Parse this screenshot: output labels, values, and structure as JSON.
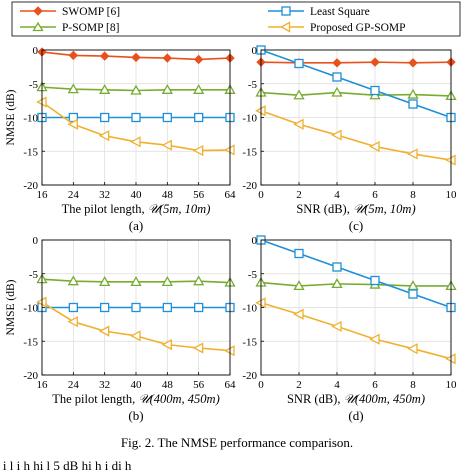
{
  "legend": {
    "entries": [
      {
        "name": "SWOMP [6]",
        "color": "#e8501c",
        "marker": "diamond"
      },
      {
        "name": "P-SOMP [8]",
        "color": "#77ac30",
        "marker": "triangle"
      },
      {
        "name": "Least Square",
        "color": "#1e90d8",
        "marker": "square"
      },
      {
        "name": "Proposed GP-SOMP",
        "color": "#f0b030",
        "marker": "left-triangle"
      }
    ]
  },
  "figure": {
    "caption": "Fig. 2.   The NMSE performance comparison.",
    "bottom_text": "l i    l    i h         hi           l    5 dB   hi h i   di     h"
  },
  "chart_data": [
    {
      "type": "line",
      "panel_label": "(a)",
      "xlabel": "The pilot length, 𝒰(5m, 10m)",
      "xlabel_parts": {
        "prefix": "The pilot length, ",
        "script": "𝒰",
        "args": "(5m, 10m)"
      },
      "ylabel": "NMSE (dB)",
      "x": [
        16,
        24,
        32,
        40,
        48,
        56,
        64
      ],
      "xticks": [
        16,
        24,
        32,
        40,
        48,
        56,
        64
      ],
      "yticks": [
        0,
        -5,
        -10,
        -15,
        -20
      ],
      "xlim": [
        16,
        64
      ],
      "ylim": [
        -20,
        0
      ],
      "grid": true,
      "series": [
        {
          "name": "SWOMP [6]",
          "values": [
            -0.3,
            -0.8,
            -0.9,
            -1.1,
            -1.2,
            -1.4,
            -1.2
          ]
        },
        {
          "name": "P-SOMP [8]",
          "values": [
            -5.5,
            -5.8,
            -5.9,
            -6.0,
            -5.9,
            -5.9,
            -5.9
          ]
        },
        {
          "name": "Least Square",
          "values": [
            -10,
            -10,
            -10,
            -10,
            -10,
            -10,
            -10
          ]
        },
        {
          "name": "Proposed GP-SOMP",
          "values": [
            -7.7,
            -11.0,
            -12.7,
            -13.6,
            -14.1,
            -14.9,
            -14.8
          ]
        }
      ]
    },
    {
      "type": "line",
      "panel_label": "(c)",
      "xlabel": "SNR (dB), 𝒰(5m, 10m)",
      "xlabel_parts": {
        "prefix": "SNR (dB), ",
        "script": "𝒰",
        "args": "(5m, 10m)"
      },
      "ylabel": "",
      "x": [
        0,
        2,
        4,
        6,
        8,
        10
      ],
      "xticks": [
        0,
        2,
        4,
        6,
        8,
        10
      ],
      "yticks": [
        0,
        -5,
        -10,
        -15,
        -20
      ],
      "xlim": [
        0,
        10
      ],
      "ylim": [
        -20,
        0
      ],
      "grid": true,
      "series": [
        {
          "name": "SWOMP [6]",
          "values": [
            -1.8,
            -1.9,
            -1.9,
            -1.8,
            -1.9,
            -1.8
          ]
        },
        {
          "name": "P-SOMP [8]",
          "values": [
            -6.3,
            -6.7,
            -6.3,
            -6.7,
            -6.6,
            -6.8
          ]
        },
        {
          "name": "Least Square",
          "values": [
            0.0,
            -2.0,
            -4.0,
            -6.0,
            -8.0,
            -10.0
          ]
        },
        {
          "name": "Proposed GP-SOMP",
          "values": [
            -9.0,
            -11.0,
            -12.6,
            -14.3,
            -15.4,
            -16.3
          ]
        }
      ]
    },
    {
      "type": "line",
      "panel_label": "(b)",
      "xlabel": "The pilot length, 𝒰(400m, 450m)",
      "xlabel_parts": {
        "prefix": "The pilot length, ",
        "script": "𝒰",
        "args": "(400m, 450m)"
      },
      "ylabel": "NMSE (dB)",
      "x": [
        16,
        24,
        32,
        40,
        48,
        56,
        64
      ],
      "xticks": [
        16,
        24,
        32,
        40,
        48,
        56,
        64
      ],
      "yticks": [
        0,
        -5,
        -10,
        -15,
        -20
      ],
      "xlim": [
        16,
        64
      ],
      "ylim": [
        -20,
        0
      ],
      "grid": true,
      "series": [
        {
          "name": "SWOMP [6]",
          "values": [
            null,
            null,
            null,
            null,
            null,
            null,
            null
          ]
        },
        {
          "name": "P-SOMP [8]",
          "values": [
            -5.8,
            -6.1,
            -6.2,
            -6.2,
            -6.2,
            -6.1,
            -6.3
          ]
        },
        {
          "name": "Least Square",
          "values": [
            -10,
            -10,
            -10,
            -10,
            -10,
            -10,
            -10
          ]
        },
        {
          "name": "Proposed GP-SOMP",
          "values": [
            -9.2,
            -12.1,
            -13.5,
            -14.2,
            -15.5,
            -16.0,
            -16.4
          ]
        }
      ]
    },
    {
      "type": "line",
      "panel_label": "(d)",
      "xlabel": "SNR (dB), 𝒰(400m, 450m)",
      "xlabel_parts": {
        "prefix": "SNR (dB), ",
        "script": "𝒰",
        "args": "(400m, 450m)"
      },
      "ylabel": "",
      "x": [
        0,
        2,
        4,
        6,
        8,
        10
      ],
      "xticks": [
        0,
        2,
        4,
        6,
        8,
        10
      ],
      "yticks": [
        0,
        -5,
        -10,
        -15,
        -20
      ],
      "xlim": [
        0,
        10
      ],
      "ylim": [
        -20,
        0
      ],
      "grid": true,
      "series": [
        {
          "name": "SWOMP [6]",
          "values": [
            null,
            null,
            null,
            null,
            null,
            null
          ]
        },
        {
          "name": "P-SOMP [8]",
          "values": [
            -6.3,
            -6.8,
            -6.5,
            -6.6,
            -6.8,
            -6.8
          ]
        },
        {
          "name": "Least Square",
          "values": [
            0.0,
            -2.0,
            -4.0,
            -6.0,
            -8.0,
            -10.0
          ]
        },
        {
          "name": "Proposed GP-SOMP",
          "values": [
            -9.3,
            -11.0,
            -12.8,
            -14.7,
            -16.1,
            -17.6
          ]
        }
      ]
    }
  ]
}
